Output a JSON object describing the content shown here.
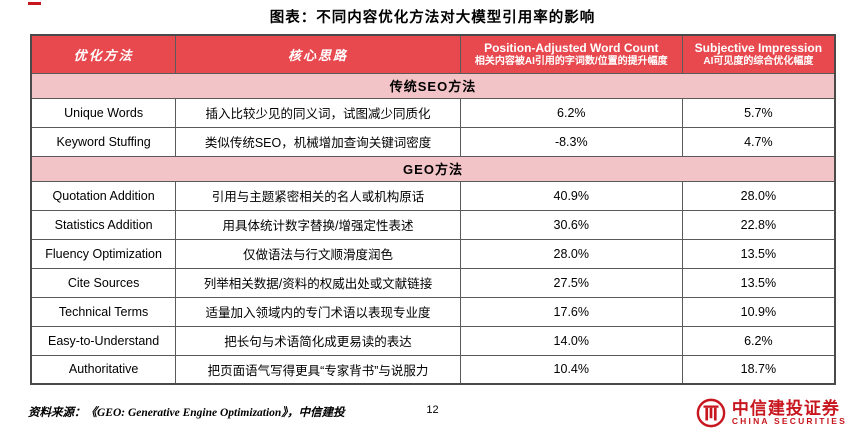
{
  "page": {
    "title": "图表：不同内容优化方法对大模型引用率的影响"
  },
  "chart_data": {
    "type": "table",
    "title": "图表：不同内容优化方法对大模型引用率的影响",
    "header": {
      "col1": "优化方法",
      "col2": "核心思路",
      "col3_title": "Position-Adjusted Word Count",
      "col3_sub": "相关内容被AI引用的字词数/位置的提升幅度",
      "col4_title": "Subjective Impression",
      "col4_sub": "AI可见度的综合优化幅度"
    },
    "sections": [
      {
        "name": "传统SEO方法",
        "rows": [
          {
            "method": "Unique Words",
            "idea": "插入比较少见的同义词，试图减少同质化",
            "pawc": "6.2%",
            "si": "5.7%"
          },
          {
            "method": "Keyword Stuffing",
            "idea": "类似传统SEO，机械增加查询关键词密度",
            "pawc": "-8.3%",
            "si": "4.7%"
          }
        ]
      },
      {
        "name": "GEO方法",
        "rows": [
          {
            "method": "Quotation Addition",
            "idea": "引用与主题紧密相关的名人或机构原话",
            "pawc": "40.9%",
            "si": "28.0%"
          },
          {
            "method": "Statistics Addition",
            "idea": "用具体统计数字替换/增强定性表述",
            "pawc": "30.6%",
            "si": "22.8%"
          },
          {
            "method": "Fluency Optimization",
            "idea": "仅做语法与行文顺滑度润色",
            "pawc": "28.0%",
            "si": "13.5%"
          },
          {
            "method": "Cite Sources",
            "idea": "列举相关数据/资料的权威出处或文献链接",
            "pawc": "27.5%",
            "si": "13.5%"
          },
          {
            "method": "Technical Terms",
            "idea": "适量加入领域内的专门术语以表现专业度",
            "pawc": "17.6%",
            "si": "10.9%"
          },
          {
            "method": "Easy-to-Understand",
            "idea": "把长句与术语简化成更易读的表达",
            "pawc": "14.0%",
            "si": "6.2%"
          },
          {
            "method": "Authoritative",
            "idea": "把页面语气写得更具“专家背书”与说服力",
            "pawc": "10.4%",
            "si": "18.7%"
          }
        ]
      }
    ]
  },
  "footer": {
    "source": "资料来源：《GEO: Generative Engine Optimization》，中信建投",
    "page_number": "12",
    "logo_cn": "中信建投证券",
    "logo_en": "CHINA SECURITIES"
  },
  "colors": {
    "header_bg": "#E8494F",
    "section_bg": "#F3C4C7",
    "brand_red": "#C8161E"
  }
}
